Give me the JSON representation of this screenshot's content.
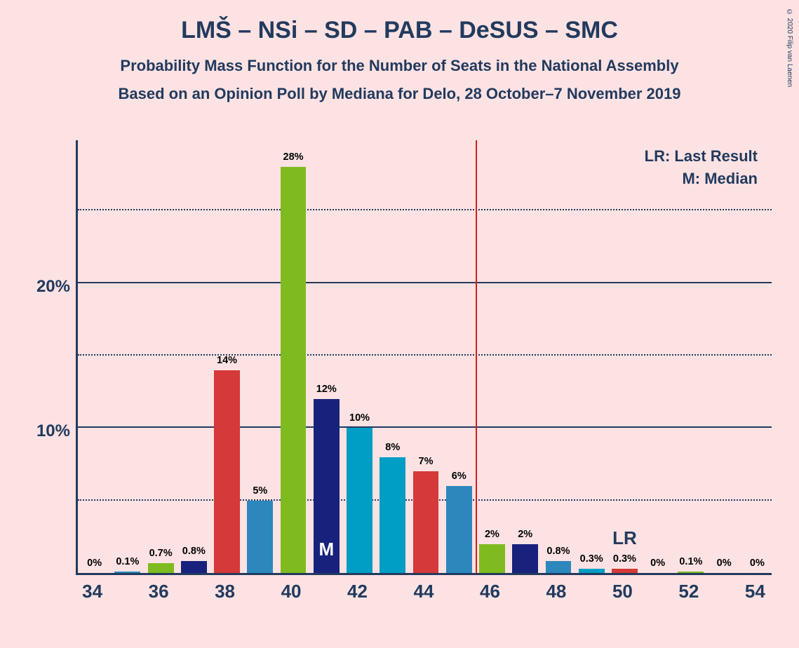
{
  "copyright": "© 2020 Filip van Laenen",
  "title": "LMŠ – NSi – SD – PAB – DeSUS – SMC",
  "subtitle1": "Probability Mass Function for the Number of Seats in the National Assembly",
  "subtitle2": "Based on an Opinion Poll by Mediana for Delo, 28 October–7 November 2019",
  "colors": {
    "background": "#fce2e2",
    "text": "#223a5e",
    "axis": "#223a5e",
    "vline": "#d91c1c",
    "bars": [
      "#d53939",
      "#2c87bd",
      "#7fbb1f",
      "#18227c",
      "#009dc4",
      "#2c87bd"
    ]
  },
  "legend": {
    "lr": "LR: Last Result",
    "m": "M: Median"
  },
  "chart": {
    "type": "bar",
    "ymax": 30,
    "y_major": [
      10,
      20
    ],
    "y_minor": [
      5,
      15,
      25
    ],
    "y_labels": [
      "10%",
      "20%"
    ],
    "x_range": [
      34,
      54
    ],
    "x_ticks": [
      34,
      36,
      38,
      40,
      42,
      44,
      46,
      48,
      50,
      52,
      54
    ],
    "bar_width": 0.78,
    "median_x": 41,
    "median_label": "M",
    "lr_x": 50,
    "lr_label": "LR",
    "vline_x": 45.5,
    "bars": [
      {
        "x": 34,
        "v": 0,
        "label": "0%",
        "c": 0
      },
      {
        "x": 35,
        "v": 0.1,
        "label": "0.1%",
        "c": 1
      },
      {
        "x": 36,
        "v": 0.7,
        "label": "0.7%",
        "c": 2
      },
      {
        "x": 37,
        "v": 0.8,
        "label": "0.8%",
        "c": 3
      },
      {
        "x": 38,
        "v": 14,
        "label": "14%",
        "c": 0
      },
      {
        "x": 39,
        "v": 5,
        "label": "5%",
        "c": 1
      },
      {
        "x": 40,
        "v": 28,
        "label": "28%",
        "c": 2
      },
      {
        "x": 41,
        "v": 12,
        "label": "12%",
        "c": 3
      },
      {
        "x": 42,
        "v": 10,
        "label": "10%",
        "c": 4
      },
      {
        "x": 43,
        "v": 8,
        "label": "8%",
        "c": 4
      },
      {
        "x": 44,
        "v": 7,
        "label": "7%",
        "c": 0
      },
      {
        "x": 45,
        "v": 6,
        "label": "6%",
        "c": 1
      },
      {
        "x": 46,
        "v": 2,
        "label": "2%",
        "c": 2
      },
      {
        "x": 47,
        "v": 2,
        "label": "2%",
        "c": 3
      },
      {
        "x": 48,
        "v": 0.8,
        "label": "0.8%",
        "c": 5
      },
      {
        "x": 49,
        "v": 0.3,
        "label": "0.3%",
        "c": 4
      },
      {
        "x": 50,
        "v": 0.3,
        "label": "0.3%",
        "c": 0
      },
      {
        "x": 51,
        "v": 0,
        "label": "0%",
        "c": 1
      },
      {
        "x": 52,
        "v": 0.1,
        "label": "0.1%",
        "c": 2
      },
      {
        "x": 53,
        "v": 0,
        "label": "0%",
        "c": 3
      },
      {
        "x": 54,
        "v": 0,
        "label": "0%",
        "c": 4
      }
    ]
  }
}
